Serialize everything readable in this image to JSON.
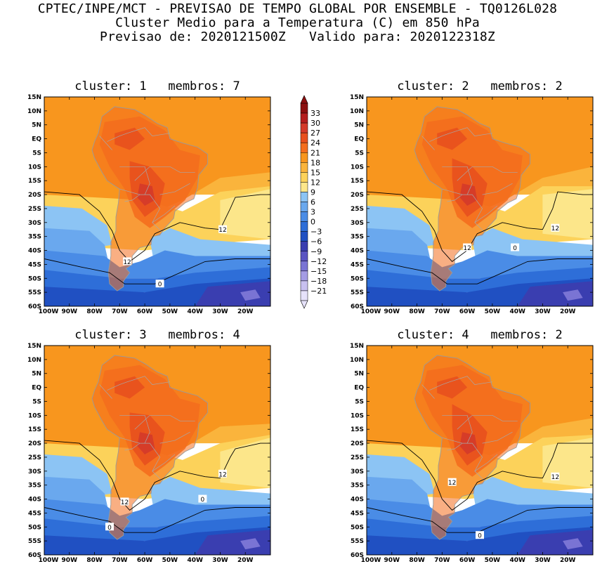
{
  "header": {
    "line1": "CPTEC/INPE/MCT - PREVISAO DE TEMPO GLOBAL POR ENSEMBLE - TQ0126L028",
    "line2": "Cluster Medio para a Temperatura (C) em 850 hPa",
    "line3": "Previsao de: 2020121500Z   Valido para: 2020122318Z"
  },
  "colorbar": {
    "levels": [
      33,
      30,
      27,
      24,
      21,
      18,
      15,
      12,
      9,
      6,
      3,
      0,
      -3,
      -6,
      -9,
      -12,
      -15,
      -18,
      -21
    ],
    "colors": [
      "#8c1010",
      "#b41e1e",
      "#d43a2a",
      "#e8501e",
      "#f46e1e",
      "#f8961e",
      "#fab43c",
      "#fcd25a",
      "#fce68a",
      "#8cc4f4",
      "#6aa8ee",
      "#4a8ce6",
      "#2e6ed8",
      "#2050c2",
      "#3a3eb0",
      "#5a54c2",
      "#7a74d4",
      "#a49ce4",
      "#c8c0f0",
      "#e6e2fa"
    ]
  },
  "axes": {
    "lat_labels": [
      "15N",
      "10N",
      "5N",
      "EQ",
      "5S",
      "10S",
      "15S",
      "20S",
      "25S",
      "30S",
      "35S",
      "40S",
      "45S",
      "50S",
      "55S",
      "60S"
    ],
    "lon_labels": [
      "100W",
      "90W",
      "80W",
      "70W",
      "60W",
      "50W",
      "40W",
      "30W",
      "20W"
    ]
  },
  "chart_data": [
    {
      "type": "heatmap",
      "title": "cluster: 1   membros: 7",
      "cluster": 1,
      "membros": 7,
      "xlim": [
        -100,
        -10
      ],
      "ylim": [
        -60,
        15
      ],
      "contours": [
        12,
        0
      ],
      "contour_labels": [
        {
          "value": "12",
          "lon": -67,
          "lat": -44
        },
        {
          "value": "12",
          "lon": -29,
          "lat": -32.5
        },
        {
          "value": "0",
          "lon": -54,
          "lat": -52
        }
      ]
    },
    {
      "type": "heatmap",
      "title": "cluster: 2   membros: 2",
      "cluster": 2,
      "membros": 2,
      "xlim": [
        -100,
        -10
      ],
      "ylim": [
        -60,
        15
      ],
      "contours": [
        12,
        0
      ],
      "contour_labels": [
        {
          "value": "12",
          "lon": -60,
          "lat": -39
        },
        {
          "value": "12",
          "lon": -25,
          "lat": -32
        },
        {
          "value": "0",
          "lon": -41,
          "lat": -39
        }
      ]
    },
    {
      "type": "heatmap",
      "title": "cluster: 3   membros: 4",
      "cluster": 3,
      "membros": 4,
      "xlim": [
        -100,
        -10
      ],
      "ylim": [
        -60,
        15
      ],
      "contours": [
        12,
        0
      ],
      "contour_labels": [
        {
          "value": "12",
          "lon": -68,
          "lat": -41
        },
        {
          "value": "12",
          "lon": -29,
          "lat": -31
        },
        {
          "value": "0",
          "lon": -37,
          "lat": -40
        },
        {
          "value": "0",
          "lon": -74,
          "lat": -50
        }
      ]
    },
    {
      "type": "heatmap",
      "title": "cluster: 4   membros: 2",
      "cluster": 4,
      "membros": 2,
      "xlim": [
        -100,
        -10
      ],
      "ylim": [
        -60,
        15
      ],
      "contours": [
        12,
        0
      ],
      "contour_labels": [
        {
          "value": "12",
          "lon": -66,
          "lat": -34
        },
        {
          "value": "12",
          "lon": -25,
          "lat": -32
        },
        {
          "value": "0",
          "lon": -55,
          "lat": -53
        }
      ]
    }
  ]
}
